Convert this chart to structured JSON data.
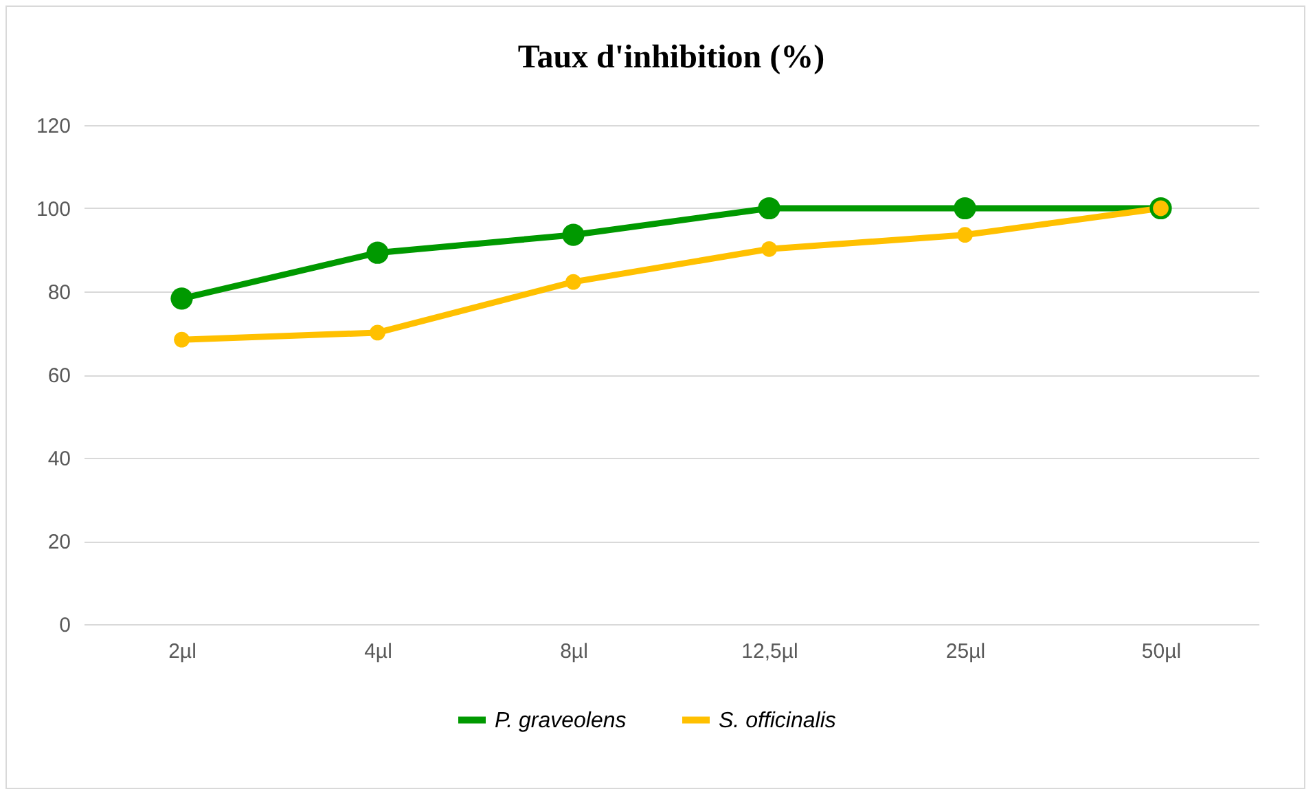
{
  "chart_data": {
    "type": "line",
    "title": "Taux d'inhibition (%)",
    "categories": [
      "2µl",
      "4µl",
      "8µl",
      "12,5µl",
      "25µl",
      "50µl"
    ],
    "series": [
      {
        "name": "P. graveolens",
        "color": "#009900",
        "values": [
          78.3,
          89.3,
          93.6,
          100,
          100,
          100
        ]
      },
      {
        "name": "S. officinalis",
        "color": "#ffc000",
        "values": [
          68.4,
          70.1,
          82.3,
          90.2,
          93.6,
          100
        ]
      }
    ],
    "ylim": [
      0,
      120
    ],
    "yticks": [
      0,
      20,
      40,
      60,
      80,
      100,
      120
    ],
    "grid": "y",
    "legend": "bottom",
    "marker": "circle",
    "line_style": "solid"
  }
}
